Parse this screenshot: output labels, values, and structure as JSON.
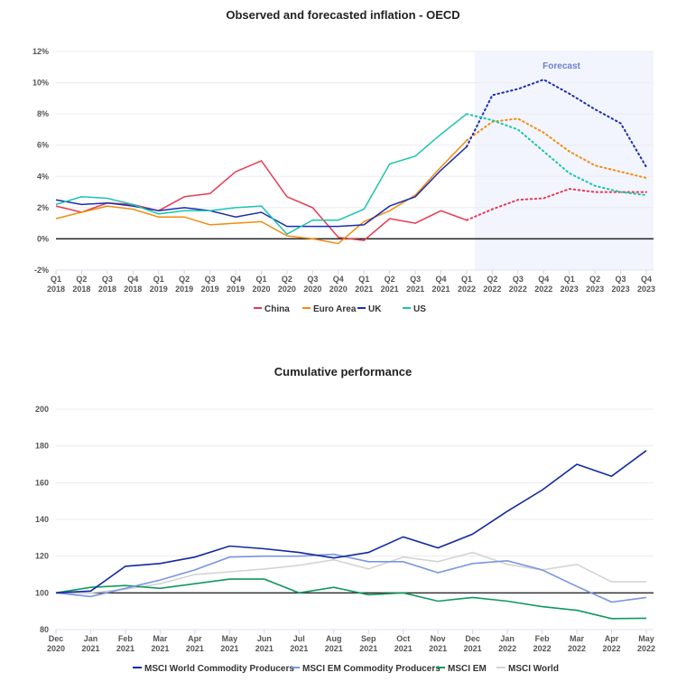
{
  "chart_data": [
    {
      "type": "line",
      "title": "Observed and forecasted inflation - OECD",
      "annotation": "Forecast",
      "x": [
        "Q1 2018",
        "Q2 2018",
        "Q3 2018",
        "Q4 2018",
        "Q1 2019",
        "Q2 2019",
        "Q3 2019",
        "Q4 2019",
        "Q1 2020",
        "Q2 2020",
        "Q3 2020",
        "Q4 2020",
        "Q1 2021",
        "Q2 2021",
        "Q3 2021",
        "Q4 2021",
        "Q1 2022",
        "Q2 2022",
        "Q3 2022",
        "Q4 2022",
        "Q1 2023",
        "Q2 2023",
        "Q3 2023",
        "Q4 2023"
      ],
      "x_tick_labels": [
        [
          "Q1",
          "2018"
        ],
        [
          "Q2",
          "2018"
        ],
        [
          "Q3",
          "2018"
        ],
        [
          "Q4",
          "2018"
        ],
        [
          "Q1",
          "2019"
        ],
        [
          "Q2",
          "2019"
        ],
        [
          "Q3",
          "2019"
        ],
        [
          "Q4",
          "2019"
        ],
        [
          "Q1",
          "2020"
        ],
        [
          "Q2",
          "2020"
        ],
        [
          "Q3",
          "2020"
        ],
        [
          "Q4",
          "2020"
        ],
        [
          "Q1",
          "2021"
        ],
        [
          "Q2",
          "2021"
        ],
        [
          "Q3",
          "2021"
        ],
        [
          "Q4",
          "2021"
        ],
        [
          "Q1",
          "2022"
        ],
        [
          "Q2",
          "2022"
        ],
        [
          "Q3",
          "2022"
        ],
        [
          "Q4",
          "2022"
        ],
        [
          "Q1",
          "2023"
        ],
        [
          "Q2",
          "2023"
        ],
        [
          "Q3",
          "2023"
        ],
        [
          "Q4",
          "2023"
        ]
      ],
      "y_tick_labels": [
        "12%",
        "10%",
        "8%",
        "6%",
        "4%",
        "2%",
        "0%",
        "-2%"
      ],
      "y_ticks": [
        12,
        10,
        8,
        6,
        4,
        2,
        0,
        -2
      ],
      "ylim": [
        -2,
        12
      ],
      "y_unit": "%",
      "forecast_start": "Q1 2022",
      "grid": true,
      "legend_position": "bottom",
      "series": [
        {
          "name": "China",
          "color": "#e8384f",
          "actual": [
            2.1,
            1.7,
            2.3,
            2.2,
            1.8,
            2.7,
            2.9,
            4.3,
            5.0,
            2.7,
            2.0,
            0.1,
            -0.1,
            1.3,
            1.0,
            1.8,
            1.2
          ],
          "forecast": [
            1.2,
            1.9,
            2.5,
            2.6,
            3.2,
            3.0,
            3.0,
            3.0
          ]
        },
        {
          "name": "Euro Area",
          "color": "#f28c0f",
          "actual": [
            1.3,
            1.7,
            2.1,
            1.9,
            1.4,
            1.4,
            0.9,
            1.0,
            1.1,
            0.2,
            0.0,
            -0.3,
            1.1,
            1.8,
            2.8,
            4.6,
            6.3
          ],
          "forecast": [
            6.3,
            7.5,
            7.7,
            6.8,
            5.6,
            4.7,
            4.3,
            3.9
          ]
        },
        {
          "name": "UK",
          "color": "#1a2eb0",
          "actual": [
            2.5,
            2.2,
            2.3,
            2.1,
            1.8,
            2.0,
            1.8,
            1.4,
            1.7,
            0.8,
            0.8,
            0.8,
            0.9,
            2.1,
            2.7,
            4.4,
            5.9
          ],
          "forecast": [
            5.9,
            9.2,
            9.6,
            10.2,
            9.3,
            8.3,
            7.4,
            4.6
          ]
        },
        {
          "name": "US",
          "color": "#1cc4b0",
          "actual": [
            2.2,
            2.7,
            2.6,
            2.2,
            1.6,
            1.8,
            1.8,
            2.0,
            2.1,
            0.3,
            1.2,
            1.2,
            1.9,
            4.8,
            5.3,
            6.7,
            8.0
          ],
          "forecast": [
            8.0,
            7.6,
            7.0,
            5.6,
            4.2,
            3.4,
            3.0,
            2.8
          ]
        }
      ]
    },
    {
      "type": "line",
      "title": "Cumulative performance",
      "x": [
        "Dec 2020",
        "Jan 2021",
        "Feb 2021",
        "Mar 2021",
        "Apr 2021",
        "May 2021",
        "Jun 2021",
        "Jul 2021",
        "Aug 2021",
        "Sep 2021",
        "Oct 2021",
        "Nov 2021",
        "Dec 2021",
        "Jan 2022",
        "Feb 2022",
        "Mar 2022",
        "Apr 2022",
        "May 2022"
      ],
      "x_tick_labels": [
        [
          "Dec",
          "2020"
        ],
        [
          "Jan",
          "2021"
        ],
        [
          "Feb",
          "2021"
        ],
        [
          "Mar",
          "2021"
        ],
        [
          "Apr",
          "2021"
        ],
        [
          "May",
          "2021"
        ],
        [
          "Jun",
          "2021"
        ],
        [
          "Jul",
          "2021"
        ],
        [
          "Aug",
          "2021"
        ],
        [
          "Sep",
          "2021"
        ],
        [
          "Oct",
          "2021"
        ],
        [
          "Nov",
          "2021"
        ],
        [
          "Dec",
          "2021"
        ],
        [
          "Jan",
          "2022"
        ],
        [
          "Feb",
          "2022"
        ],
        [
          "Mar",
          "2022"
        ],
        [
          "Apr",
          "2022"
        ],
        [
          "May",
          "2022"
        ]
      ],
      "y_tick_labels": [
        "200",
        "180",
        "160",
        "140",
        "120",
        "100",
        "80"
      ],
      "y_ticks": [
        200,
        180,
        160,
        140,
        120,
        100,
        80
      ],
      "ylim": [
        80,
        200
      ],
      "baseline": 100,
      "grid": true,
      "legend_position": "bottom",
      "series": [
        {
          "name": "MSCI World Commodity Producers",
          "color": "#1428a0",
          "values": [
            100,
            101,
            114.5,
            116,
            119.5,
            125.5,
            124,
            122,
            119,
            122,
            130.5,
            124.5,
            132,
            144.5,
            156,
            170,
            163.5,
            177.5
          ]
        },
        {
          "name": "MSCI EM Commodity Producers",
          "color": "#7b96e0",
          "values": [
            100,
            98,
            102.5,
            107,
            112.5,
            119.5,
            120,
            120,
            121,
            117,
            117,
            111,
            116,
            117.5,
            112.5,
            103.5,
            95,
            97.5
          ]
        },
        {
          "name": "MSCI EM",
          "color": "#0f9a5c",
          "values": [
            100,
            103,
            104,
            102.5,
            105,
            107.5,
            107.5,
            100,
            103,
            99,
            100,
            95.5,
            97.5,
            95.5,
            92.5,
            90.5,
            86,
            86.2
          ]
        },
        {
          "name": "MSCI World",
          "color": "#d4d4d4",
          "values": [
            100,
            100,
            102,
            105,
            110,
            111.5,
            113,
            115,
            118,
            113,
            119.5,
            117,
            122,
            115.5,
            112.5,
            115.5,
            106,
            106
          ]
        }
      ]
    }
  ]
}
